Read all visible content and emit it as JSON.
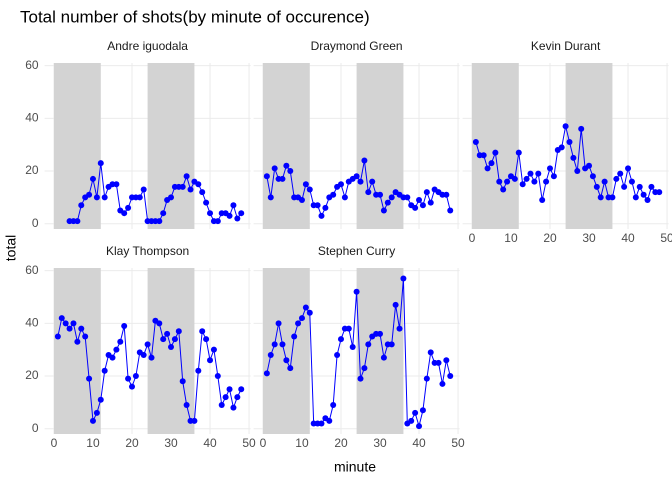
{
  "figure": {
    "title": "Total number of shots(by minute of occurence)",
    "x_label": "minute",
    "y_label": "total"
  },
  "chart_data": [
    {
      "type": "line",
      "title": "Andre iguodala",
      "color": "#0000ff",
      "shade_color": "#d3d3d3",
      "shaded_ranges": [
        [
          0,
          12
        ],
        [
          24,
          36
        ]
      ],
      "x": [
        4,
        5,
        6,
        7,
        8,
        9,
        10,
        11,
        12,
        13,
        14,
        15,
        16,
        17,
        18,
        19,
        20,
        21,
        22,
        23,
        24,
        25,
        26,
        27,
        28,
        29,
        30,
        31,
        32,
        33,
        34,
        35,
        36,
        37,
        38,
        39,
        40,
        41,
        42,
        43,
        44,
        45,
        46,
        47,
        48
      ],
      "values": [
        1,
        1,
        1,
        7,
        10,
        11,
        17,
        10,
        23,
        10,
        14,
        15,
        15,
        5,
        4,
        6,
        10,
        10,
        10,
        13,
        1,
        1,
        1,
        1,
        4,
        9,
        10,
        14,
        14,
        14,
        18,
        13,
        16,
        15,
        12,
        8,
        4,
        1,
        1,
        4,
        4,
        3,
        7,
        2,
        4
      ],
      "xlim": [
        -2.4,
        50.4
      ],
      "ylim": [
        -2,
        61
      ],
      "xticks": [
        0,
        10,
        20,
        30,
        40,
        50
      ],
      "yticks": [
        0,
        20,
        40,
        60
      ],
      "grid": true,
      "show_xtick_labels": false,
      "show_ytick_labels": true
    },
    {
      "type": "line",
      "title": "Draymond Green",
      "color": "#0000ff",
      "shade_color": "#d3d3d3",
      "shaded_ranges": [
        [
          0,
          12
        ],
        [
          24,
          36
        ]
      ],
      "x": [
        1,
        2,
        3,
        4,
        5,
        6,
        7,
        8,
        9,
        10,
        11,
        12,
        13,
        14,
        15,
        16,
        17,
        18,
        19,
        20,
        21,
        22,
        23,
        24,
        25,
        26,
        27,
        28,
        29,
        30,
        31,
        32,
        33,
        34,
        35,
        36,
        37,
        38,
        39,
        40,
        41,
        42,
        43,
        44,
        45,
        46,
        47,
        48
      ],
      "values": [
        18,
        10,
        21,
        17,
        17,
        22,
        20,
        10,
        10,
        9,
        15,
        13,
        7,
        7,
        3,
        6,
        10,
        11,
        14,
        15,
        10,
        16,
        17,
        18,
        16,
        24,
        12,
        16,
        11,
        11,
        5,
        8,
        10,
        12,
        11,
        10,
        10,
        7,
        6,
        9,
        7,
        12,
        8,
        13,
        12,
        11,
        11,
        5
      ],
      "xlim": [
        -2.4,
        50.4
      ],
      "ylim": [
        -2,
        61
      ],
      "xticks": [
        0,
        10,
        20,
        30,
        40,
        50
      ],
      "yticks": [
        0,
        20,
        40,
        60
      ],
      "grid": true,
      "show_xtick_labels": false,
      "show_ytick_labels": false
    },
    {
      "type": "line",
      "title": "Kevin Durant",
      "color": "#0000ff",
      "shade_color": "#d3d3d3",
      "shaded_ranges": [
        [
          0,
          12
        ],
        [
          24,
          36
        ]
      ],
      "x": [
        1,
        2,
        3,
        4,
        5,
        6,
        7,
        8,
        9,
        10,
        11,
        12,
        13,
        14,
        15,
        16,
        17,
        18,
        19,
        20,
        21,
        22,
        23,
        24,
        25,
        26,
        27,
        28,
        29,
        30,
        31,
        32,
        33,
        34,
        35,
        36,
        37,
        38,
        39,
        40,
        41,
        42,
        43,
        44,
        45,
        46,
        47,
        48
      ],
      "values": [
        31,
        26,
        26,
        21,
        23,
        27,
        16,
        13,
        16,
        18,
        17,
        27,
        15,
        17,
        19,
        16,
        19,
        9,
        16,
        21,
        18,
        28,
        29,
        37,
        31,
        25,
        20,
        36,
        21,
        22,
        18,
        14,
        10,
        16,
        10,
        10,
        17,
        19,
        14,
        21,
        16,
        10,
        14,
        11,
        9,
        14,
        12,
        12
      ],
      "xlim": [
        -2.4,
        50.4
      ],
      "ylim": [
        -2,
        61
      ],
      "xticks": [
        0,
        10,
        20,
        30,
        40,
        50
      ],
      "yticks": [
        0,
        20,
        40,
        60
      ],
      "grid": true,
      "show_xtick_labels": true,
      "show_ytick_labels": false
    },
    {
      "type": "line",
      "title": "Klay Thompson",
      "color": "#0000ff",
      "shade_color": "#d3d3d3",
      "shaded_ranges": [
        [
          0,
          12
        ],
        [
          24,
          36
        ]
      ],
      "x": [
        1,
        2,
        3,
        4,
        5,
        6,
        7,
        8,
        9,
        10,
        11,
        12,
        13,
        14,
        15,
        16,
        17,
        18,
        19,
        20,
        21,
        22,
        23,
        24,
        25,
        26,
        27,
        28,
        29,
        30,
        31,
        32,
        33,
        34,
        35,
        36,
        37,
        38,
        39,
        40,
        41,
        42,
        43,
        44,
        45,
        46,
        47,
        48
      ],
      "values": [
        35,
        42,
        40,
        38,
        40,
        33,
        38,
        35,
        19,
        3,
        6,
        11,
        22,
        28,
        27,
        30,
        33,
        39,
        19,
        16,
        20,
        29,
        28,
        32,
        27,
        41,
        40,
        34,
        36,
        31,
        34,
        37,
        18,
        9,
        3,
        3,
        22,
        37,
        34,
        26,
        30,
        20,
        9,
        12,
        15,
        8,
        12,
        15
      ],
      "xlim": [
        -2.4,
        50.4
      ],
      "ylim": [
        -2,
        61
      ],
      "xticks": [
        0,
        10,
        20,
        30,
        40,
        50
      ],
      "yticks": [
        0,
        20,
        40,
        60
      ],
      "grid": true,
      "show_xtick_labels": true,
      "show_ytick_labels": true
    },
    {
      "type": "line",
      "title": "Stephen Curry",
      "color": "#0000ff",
      "shade_color": "#d3d3d3",
      "shaded_ranges": [
        [
          0,
          12
        ],
        [
          24,
          36
        ]
      ],
      "x": [
        1,
        2,
        3,
        4,
        5,
        6,
        7,
        8,
        9,
        10,
        11,
        12,
        13,
        14,
        15,
        16,
        17,
        18,
        19,
        20,
        21,
        22,
        23,
        24,
        25,
        26,
        27,
        28,
        29,
        30,
        31,
        32,
        33,
        34,
        35,
        36,
        37,
        38,
        39,
        40,
        41,
        42,
        43,
        44,
        45,
        46,
        47,
        48
      ],
      "values": [
        21,
        28,
        32,
        40,
        32,
        26,
        23,
        35,
        40,
        42,
        46,
        44,
        2,
        2,
        2,
        4,
        3,
        9,
        28,
        34,
        38,
        38,
        31,
        52,
        19,
        23,
        32,
        35,
        36,
        36,
        27,
        32,
        32,
        47,
        38,
        57,
        2,
        3,
        6,
        1,
        7,
        19,
        29,
        25,
        25,
        17,
        26,
        20
      ],
      "xlim": [
        -2.4,
        50.4
      ],
      "ylim": [
        -2,
        61
      ],
      "xticks": [
        0,
        10,
        20,
        30,
        40,
        50
      ],
      "yticks": [
        0,
        20,
        40,
        60
      ],
      "grid": true,
      "show_xtick_labels": true,
      "show_ytick_labels": false
    }
  ]
}
